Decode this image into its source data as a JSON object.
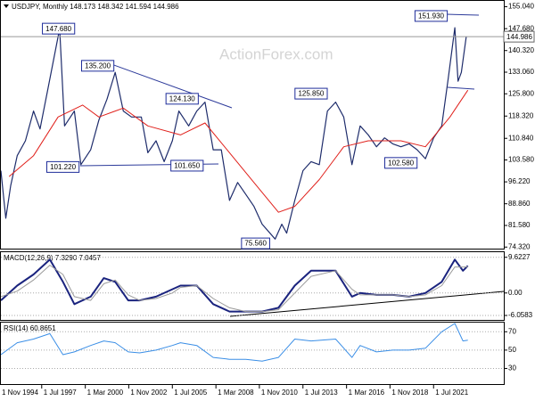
{
  "chart_data": [
    {
      "type": "line",
      "title": "USDJPY, Monthly 148.173 148.342 141.594 144.986",
      "watermark": "ActionForex.com",
      "xlim": [
        1995.0,
        2025.8
      ],
      "ylim": [
        73.5,
        157
      ],
      "yticks": [
        {
          "value": 155.04,
          "label": "155.040"
        },
        {
          "value": 147.68,
          "label": "147.680"
        },
        {
          "value": 140.32,
          "label": "140.320"
        },
        {
          "value": 133.06,
          "label": "133.060"
        },
        {
          "value": 125.8,
          "label": "125.800"
        },
        {
          "value": 118.32,
          "label": "118.320"
        },
        {
          "value": 110.84,
          "label": "110.840"
        },
        {
          "value": 103.58,
          "label": "103.580"
        },
        {
          "value": 96.22,
          "label": "96.220"
        },
        {
          "value": 88.86,
          "label": "88.860"
        },
        {
          "value": 81.58,
          "label": "81.580"
        },
        {
          "value": 74.32,
          "label": "74.320"
        }
      ],
      "grid": false,
      "last": {
        "value": 144.986,
        "label": "144.986"
      },
      "series": [
        {
          "color": "#1e2c6b",
          "width": 1.2,
          "x": [
            1995.0,
            1995.3,
            1995.6,
            1996.0,
            1996.5,
            1997.0,
            1997.4,
            1997.9,
            1998.6,
            1998.9,
            1999.5,
            1999.9,
            2000.5,
            2001.0,
            2001.5,
            2002.0,
            2002.5,
            2003.0,
            2003.6,
            2004.0,
            2004.5,
            2005.0,
            2005.5,
            2005.9,
            2006.5,
            2007.0,
            2007.5,
            2008.0,
            2008.5,
            2009.0,
            2009.5,
            2010.0,
            2010.5,
            2011.0,
            2011.8,
            2012.2,
            2012.5,
            2013.0,
            2013.5,
            2014.0,
            2014.5,
            2015.0,
            2015.5,
            2016.0,
            2016.5,
            2017.0,
            2017.5,
            2018.0,
            2018.5,
            2019.0,
            2019.5,
            2020.0,
            2020.5,
            2021.0,
            2021.5,
            2022.0,
            2022.4,
            2022.8,
            2023.0,
            2023.2,
            2023.5
          ],
          "values": [
            100,
            84,
            95,
            105,
            110,
            120,
            114,
            128,
            147.68,
            115,
            120,
            102,
            107,
            117,
            124,
            133,
            120,
            118,
            118,
            106,
            110,
            103,
            110,
            120,
            115,
            120,
            123,
            107,
            107,
            90,
            96,
            92,
            88,
            82,
            77,
            82,
            79,
            90,
            100,
            103,
            102,
            120,
            123,
            118,
            102,
            115,
            112,
            108,
            111,
            109,
            108,
            109,
            107,
            104,
            111,
            115,
            131,
            148,
            130,
            133,
            145
          ]
        },
        {
          "color": "#e0201b",
          "width": 1,
          "x": [
            1995.5,
            1997.0,
            1998.5,
            2000.0,
            2001.0,
            2002.5,
            2004.0,
            2006.0,
            2007.5,
            2009.0,
            2010.5,
            2012.0,
            2013.0,
            2014.5,
            2016.0,
            2017.5,
            2019.5,
            2021.0,
            2022.5,
            2023.6
          ],
          "values": [
            98,
            105,
            118,
            122,
            118,
            121,
            115,
            112,
            116,
            106,
            96,
            86,
            88,
            97,
            108,
            110,
            110,
            108,
            118,
            127
          ]
        }
      ],
      "annotations": [
        {
          "label": "147.680",
          "value": 147.68,
          "x": 1998.53
        },
        {
          "label": "135.200",
          "value": 135.2,
          "x": 2000.93
        },
        {
          "label": "124.130",
          "value": 124.13,
          "x": 2006.1
        },
        {
          "label": "101.220",
          "value": 101.22,
          "x": 1998.8
        },
        {
          "label": "101.650",
          "value": 101.65,
          "x": 2006.4
        },
        {
          "label": "125.850",
          "value": 125.85,
          "x": 2014.0
        },
        {
          "label": "102.580",
          "value": 102.58,
          "x": 2019.5
        },
        {
          "label": "75.560",
          "value": 75.56,
          "x": 2010.6
        },
        {
          "label": "151.930",
          "value": 151.93,
          "x": 2021.35
        }
      ]
    },
    {
      "type": "line",
      "title": "MACD(12,26,9) 7.3290 7.0457",
      "xlim": [
        1995.0,
        2025.8
      ],
      "ylim": [
        -7.5,
        11
      ],
      "yticks": [
        9.6227,
        {
          "value": 0,
          "label": "0.00"
        },
        -6.0583
      ],
      "grid": true,
      "series": [
        {
          "color": "#1a237e",
          "width": 2,
          "x": [
            1995.0,
            1996.0,
            1997.0,
            1998.0,
            1998.8,
            1999.5,
            2000.5,
            2001.3,
            2002.0,
            2002.8,
            2003.5,
            2004.5,
            2005.5,
            2006.0,
            2007.0,
            2008.0,
            2009.0,
            2010.0,
            2011.0,
            2012.0,
            2013.0,
            2014.0,
            2015.5,
            2016.5,
            2017.0,
            2018.0,
            2019.0,
            2020.0,
            2021.0,
            2022.0,
            2022.8,
            2023.3,
            2023.6
          ],
          "values": [
            -2,
            2,
            5,
            9,
            3,
            -3,
            -1,
            4,
            3,
            -2,
            -2,
            -1,
            1,
            2,
            2,
            -3,
            -5,
            -5,
            -5,
            -4,
            2,
            6,
            6,
            -1,
            0,
            -0.5,
            -0.5,
            -1,
            0,
            3,
            9,
            6,
            7.329
          ]
        },
        {
          "color": "#9a9a9a",
          "width": 1,
          "x": [
            1995.0,
            1996.0,
            1997.0,
            1998.0,
            1998.8,
            1999.5,
            2000.5,
            2001.3,
            2002.0,
            2002.8,
            2003.5,
            2004.5,
            2005.5,
            2006.0,
            2007.0,
            2008.0,
            2009.0,
            2010.0,
            2011.0,
            2012.0,
            2013.0,
            2014.0,
            2015.5,
            2016.5,
            2017.0,
            2018.0,
            2019.0,
            2020.0,
            2021.0,
            2022.0,
            2022.8,
            2023.3,
            2023.6
          ],
          "values": [
            -1,
            0.5,
            3.5,
            7.5,
            5,
            -1,
            -2,
            2.5,
            3.5,
            -0.5,
            -2,
            -1.5,
            0,
            1.5,
            2,
            -1.5,
            -4,
            -5,
            -5,
            -4.5,
            0,
            4.5,
            6,
            1,
            -0.5,
            -0.5,
            -0.5,
            -1,
            -0.5,
            2,
            7,
            7,
            7.0457
          ]
        }
      ]
    },
    {
      "type": "line",
      "title": "RSI(14) 60.8651",
      "xlim": [
        1995.0,
        2025.8
      ],
      "ylim": [
        12,
        80
      ],
      "yticks": [
        70,
        50,
        30
      ],
      "grid": true,
      "xticks": [
        {
          "value": 1994.83,
          "label": "1 Nov 1994"
        },
        {
          "value": 1997.5,
          "label": "1 Jul 1997"
        },
        {
          "value": 2000.17,
          "label": "1 Mar 2000"
        },
        {
          "value": 2002.83,
          "label": "1 Nov 2002"
        },
        {
          "value": 2005.5,
          "label": "1 Jul 2005"
        },
        {
          "value": 2008.17,
          "label": "1 Mar 2008"
        },
        {
          "value": 2010.83,
          "label": "1 Nov 2010"
        },
        {
          "value": 2013.5,
          "label": "1 Jul 2013"
        },
        {
          "value": 2016.17,
          "label": "1 Mar 2016"
        },
        {
          "value": 2018.83,
          "label": "1 Nov 2018"
        },
        {
          "value": 2021.5,
          "label": "1 Jul 2021"
        }
      ],
      "series": [
        {
          "color": "#3a8ee6",
          "width": 1,
          "x": [
            1995.0,
            1996.0,
            1997.0,
            1998.0,
            1998.8,
            1999.5,
            2000.5,
            2001.3,
            2002.0,
            2002.8,
            2003.5,
            2004.5,
            2005.5,
            2006.0,
            2007.0,
            2008.0,
            2009.0,
            2010.0,
            2011.0,
            2012.0,
            2013.0,
            2014.0,
            2015.5,
            2016.5,
            2017.0,
            2018.0,
            2019.0,
            2020.0,
            2021.0,
            2022.0,
            2022.8,
            2023.3,
            2023.6
          ],
          "values": [
            45,
            58,
            62,
            68,
            45,
            48,
            55,
            60,
            58,
            48,
            47,
            50,
            55,
            58,
            55,
            42,
            40,
            40,
            38,
            42,
            62,
            60,
            62,
            42,
            55,
            48,
            50,
            50,
            52,
            70,
            79,
            60,
            60.8651
          ]
        }
      ]
    }
  ]
}
